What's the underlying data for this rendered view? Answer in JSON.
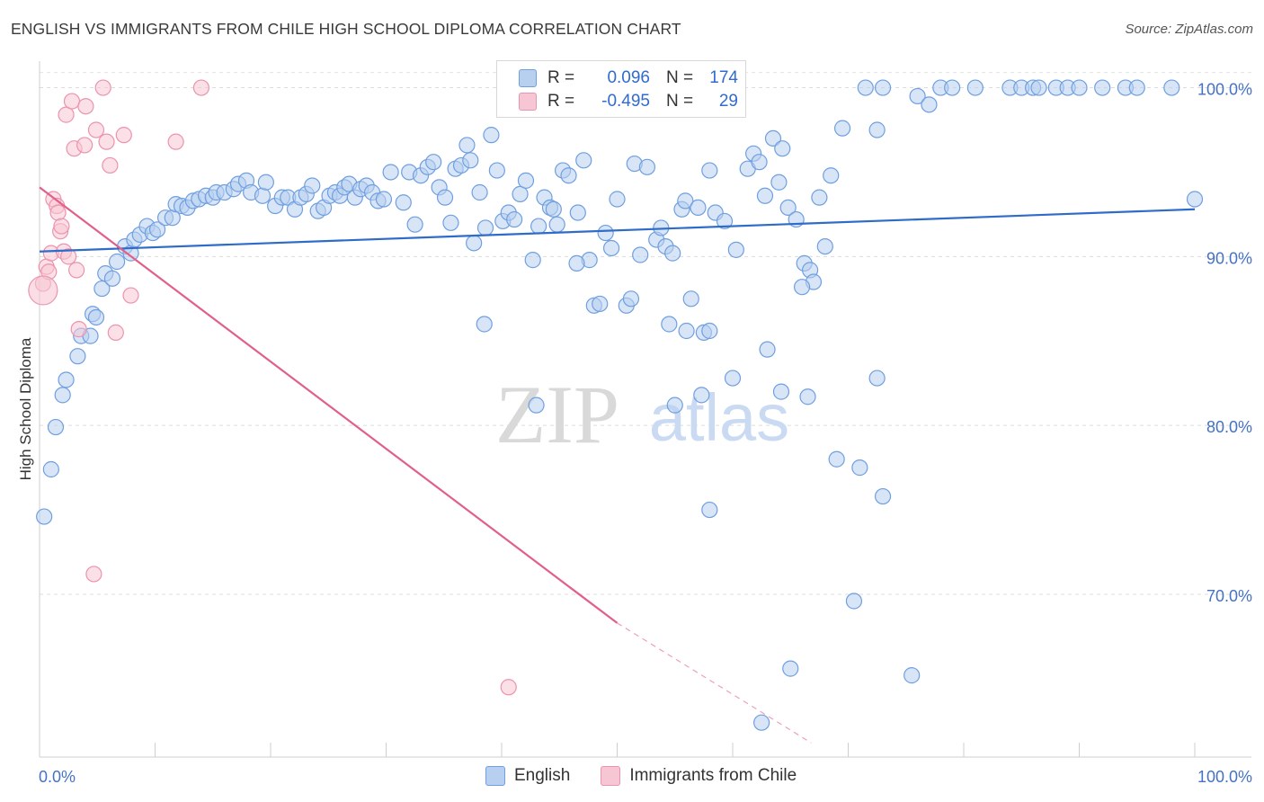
{
  "chart_data": {
    "type": "scatter",
    "title": "ENGLISH VS IMMIGRANTS FROM CHILE HIGH SCHOOL DIPLOMA CORRELATION CHART",
    "source": "Source: ZipAtlas.com",
    "ylabel": "High School Diploma",
    "xlim": [
      0,
      100
    ],
    "ylim": [
      61,
      102
    ],
    "yticks": [
      {
        "v": 70,
        "label": "70.0%"
      },
      {
        "v": 80,
        "label": "80.0%"
      },
      {
        "v": 90,
        "label": "90.0%"
      },
      {
        "v": 100,
        "label": "100.0%"
      }
    ],
    "xtick_labels": {
      "left": "0.0%",
      "right": "100.0%"
    },
    "watermark": {
      "zip": "ZIP",
      "atlas": "atlas"
    },
    "legend": {
      "rows": [
        {
          "r_label": "R =",
          "r_value": "0.096",
          "n_label": "N =",
          "n_value": "174"
        },
        {
          "r_label": "R =",
          "r_value": "-0.495",
          "n_label": "N =",
          "n_value": "29"
        }
      ]
    },
    "colors": {
      "english_fill": "#b8d0f0",
      "english_stroke": "#6f9fe0",
      "english_line": "#2f6bc8",
      "chile_fill": "#f7c6d4",
      "chile_stroke": "#ec93ad",
      "chile_line": "#e0608a"
    },
    "series": [
      {
        "name": "English",
        "trend": {
          "x0": 0,
          "y0": 90.3,
          "x1": 100,
          "y1": 92.8
        },
        "points": [
          [
            0.4,
            74.6
          ],
          [
            1,
            77.4
          ],
          [
            1.4,
            79.9
          ],
          [
            2,
            81.8
          ],
          [
            2.3,
            82.7
          ],
          [
            3.3,
            84.1
          ],
          [
            3.6,
            85.3
          ],
          [
            4.4,
            85.3
          ],
          [
            4.6,
            86.6
          ],
          [
            4.9,
            86.4
          ],
          [
            5.4,
            88.1
          ],
          [
            5.7,
            89
          ],
          [
            6.3,
            88.7
          ],
          [
            6.7,
            89.7
          ],
          [
            7.4,
            90.6
          ],
          [
            7.9,
            90.2
          ],
          [
            8.2,
            91
          ],
          [
            8.7,
            91.3
          ],
          [
            9.3,
            91.8
          ],
          [
            9.8,
            91.4
          ],
          [
            10.2,
            91.6
          ],
          [
            10.9,
            92.3
          ],
          [
            11.5,
            92.3
          ],
          [
            11.8,
            93.1
          ],
          [
            12.3,
            93
          ],
          [
            12.8,
            92.9
          ],
          [
            13.3,
            93.3
          ],
          [
            13.8,
            93.4
          ],
          [
            14.4,
            93.6
          ],
          [
            15,
            93.5
          ],
          [
            15.3,
            93.8
          ],
          [
            16,
            93.8
          ],
          [
            16.8,
            94
          ],
          [
            17.2,
            94.3
          ],
          [
            17.9,
            94.5
          ],
          [
            18.3,
            93.8
          ],
          [
            19.3,
            93.6
          ],
          [
            19.6,
            94.4
          ],
          [
            20.4,
            93
          ],
          [
            21,
            93.5
          ],
          [
            21.5,
            93.5
          ],
          [
            22.1,
            92.8
          ],
          [
            22.6,
            93.5
          ],
          [
            23.1,
            93.7
          ],
          [
            23.6,
            94.2
          ],
          [
            24.1,
            92.7
          ],
          [
            24.6,
            92.9
          ],
          [
            25.1,
            93.6
          ],
          [
            25.6,
            93.8
          ],
          [
            26,
            93.6
          ],
          [
            26.4,
            94.1
          ],
          [
            26.8,
            94.3
          ],
          [
            27.3,
            93.5
          ],
          [
            27.8,
            94
          ],
          [
            28.3,
            94.2
          ],
          [
            28.8,
            93.8
          ],
          [
            29.3,
            93.3
          ],
          [
            29.8,
            93.4
          ],
          [
            30.4,
            95
          ],
          [
            31.5,
            93.2
          ],
          [
            32,
            95
          ],
          [
            32.5,
            91.9
          ],
          [
            33,
            94.8
          ],
          [
            33.6,
            95.3
          ],
          [
            34.1,
            95.6
          ],
          [
            34.6,
            94.1
          ],
          [
            35.1,
            93.5
          ],
          [
            35.6,
            92
          ],
          [
            36,
            95.2
          ],
          [
            36.5,
            95.4
          ],
          [
            37,
            96.6
          ],
          [
            37.3,
            95.7
          ],
          [
            38.1,
            93.8
          ],
          [
            37.6,
            90.8
          ],
          [
            38.6,
            91.7
          ],
          [
            39.1,
            97.2
          ],
          [
            39.6,
            95.1
          ],
          [
            40.1,
            92.1
          ],
          [
            40.6,
            92.6
          ],
          [
            41.1,
            92.2
          ],
          [
            41.6,
            93.7
          ],
          [
            42.1,
            94.5
          ],
          [
            42.7,
            89.8
          ],
          [
            43.2,
            91.8
          ],
          [
            43.7,
            93.5
          ],
          [
            44.2,
            92.9
          ],
          [
            44.5,
            92.8
          ],
          [
            44.8,
            91.9
          ],
          [
            45.3,
            95.1
          ],
          [
            45.8,
            94.8
          ],
          [
            46.6,
            92.6
          ],
          [
            47.1,
            95.7
          ],
          [
            47.6,
            89.8
          ],
          [
            48,
            87.1
          ],
          [
            48.5,
            87.2
          ],
          [
            49,
            91.4
          ],
          [
            49.5,
            90.5
          ],
          [
            50,
            93.4
          ],
          [
            50.8,
            87.1
          ],
          [
            51.2,
            87.5
          ],
          [
            51.5,
            95.5
          ],
          [
            52,
            90.1
          ],
          [
            52.6,
            95.3
          ],
          [
            53.4,
            91
          ],
          [
            53.8,
            91.7
          ],
          [
            54.2,
            90.6
          ],
          [
            54.8,
            90.2
          ],
          [
            55.6,
            92.8
          ],
          [
            55.9,
            93.3
          ],
          [
            56.4,
            87.5
          ],
          [
            57,
            92.9
          ],
          [
            57.5,
            85.5
          ],
          [
            58,
            95.1
          ],
          [
            58.5,
            92.6
          ],
          [
            59.3,
            92.1
          ],
          [
            60.3,
            90.4
          ],
          [
            61.3,
            95.2
          ],
          [
            61.8,
            96.1
          ],
          [
            62.3,
            95.6
          ],
          [
            62.8,
            93.6
          ],
          [
            63.5,
            97
          ],
          [
            64.3,
            96.4
          ],
          [
            64.8,
            92.9
          ],
          [
            65.5,
            92.2
          ],
          [
            66.2,
            89.6
          ],
          [
            66.7,
            89.2
          ],
          [
            67,
            88.5
          ],
          [
            67.5,
            93.5
          ],
          [
            68,
            90.6
          ],
          [
            69.5,
            97.6
          ],
          [
            71.5,
            100
          ],
          [
            73,
            100
          ],
          [
            76,
            99.5
          ],
          [
            77,
            99
          ],
          [
            78,
            100
          ],
          [
            79,
            100
          ],
          [
            81,
            100
          ],
          [
            84,
            100
          ],
          [
            85,
            100
          ],
          [
            86,
            100
          ],
          [
            86.5,
            100
          ],
          [
            88,
            100
          ],
          [
            89,
            100
          ],
          [
            90,
            100
          ],
          [
            92,
            100
          ],
          [
            94,
            100
          ],
          [
            95,
            100
          ],
          [
            98,
            100
          ],
          [
            100,
            93.4
          ],
          [
            58,
            85.6
          ],
          [
            56,
            85.6
          ],
          [
            54.5,
            86
          ],
          [
            57.3,
            81.8
          ],
          [
            60,
            82.8
          ],
          [
            63,
            84.5
          ],
          [
            64.2,
            82
          ],
          [
            66.5,
            81.7
          ],
          [
            69,
            78
          ],
          [
            71,
            77.5
          ],
          [
            73,
            75.8
          ],
          [
            70.5,
            69.6
          ],
          [
            72.5,
            82.8
          ],
          [
            75.5,
            65.2
          ],
          [
            65,
            65.6
          ],
          [
            62.5,
            62.4
          ],
          [
            58,
            75
          ],
          [
            55,
            81.2
          ],
          [
            43,
            81.2
          ],
          [
            38.5,
            86
          ],
          [
            68.5,
            94.8
          ],
          [
            72.5,
            97.5
          ],
          [
            66,
            88.2
          ],
          [
            64,
            94.4
          ],
          [
            46.5,
            89.6
          ]
        ]
      },
      {
        "name": "Immigrants from Chile",
        "trend": {
          "x0": 0,
          "y0": 94.1,
          "x1": 50,
          "y1": 68.3,
          "dash_x1": 66.8,
          "dash_y1": 61.2
        },
        "points": [
          [
            0.3,
            88.4
          ],
          [
            0.6,
            89.4
          ],
          [
            0.8,
            89.1
          ],
          [
            1,
            90.2
          ],
          [
            1.2,
            93.4
          ],
          [
            1.5,
            93
          ],
          [
            1.6,
            92.6
          ],
          [
            1.8,
            91.5
          ],
          [
            2.1,
            90.3
          ],
          [
            2.3,
            98.4
          ],
          [
            2.8,
            99.2
          ],
          [
            3,
            96.4
          ],
          [
            3.2,
            89.2
          ],
          [
            3.4,
            85.7
          ],
          [
            3.9,
            96.6
          ],
          [
            4,
            98.9
          ],
          [
            4.9,
            97.5
          ],
          [
            5.5,
            100
          ],
          [
            5.8,
            96.8
          ],
          [
            6.1,
            95.4
          ],
          [
            6.6,
            85.5
          ],
          [
            7.3,
            97.2
          ],
          [
            7.9,
            87.7
          ],
          [
            11.8,
            96.8
          ],
          [
            14,
            100
          ],
          [
            4.7,
            71.2
          ],
          [
            40.6,
            64.5
          ],
          [
            1.9,
            91.8
          ],
          [
            2.5,
            90
          ]
        ]
      }
    ],
    "bottom_legend": [
      "English",
      "Immigrants from Chile"
    ]
  }
}
